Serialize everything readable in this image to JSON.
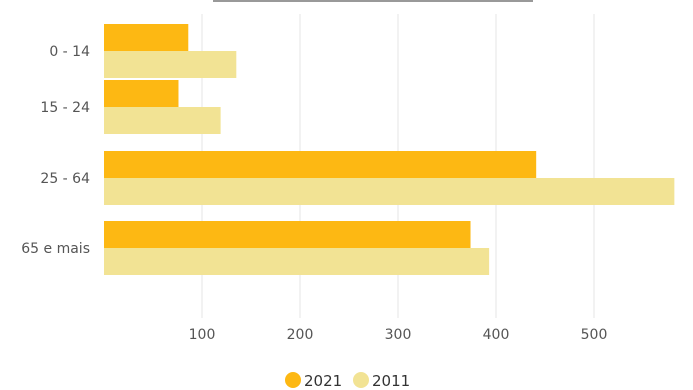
{
  "chart_data": {
    "type": "bar",
    "orientation": "horizontal",
    "categories": [
      "0 - 14",
      "15 - 24",
      "25 - 64",
      "65 e mais"
    ],
    "series": [
      {
        "name": "2021",
        "color": "#FDB813",
        "values": [
          86,
          76,
          441,
          374
        ]
      },
      {
        "name": "2011",
        "color": "#F2E394",
        "values": [
          135,
          119,
          582,
          393
        ]
      }
    ],
    "xticks": [
      100,
      200,
      300,
      400,
      500
    ],
    "xlim": [
      0,
      582
    ],
    "grid": true,
    "legend": "bottom"
  }
}
